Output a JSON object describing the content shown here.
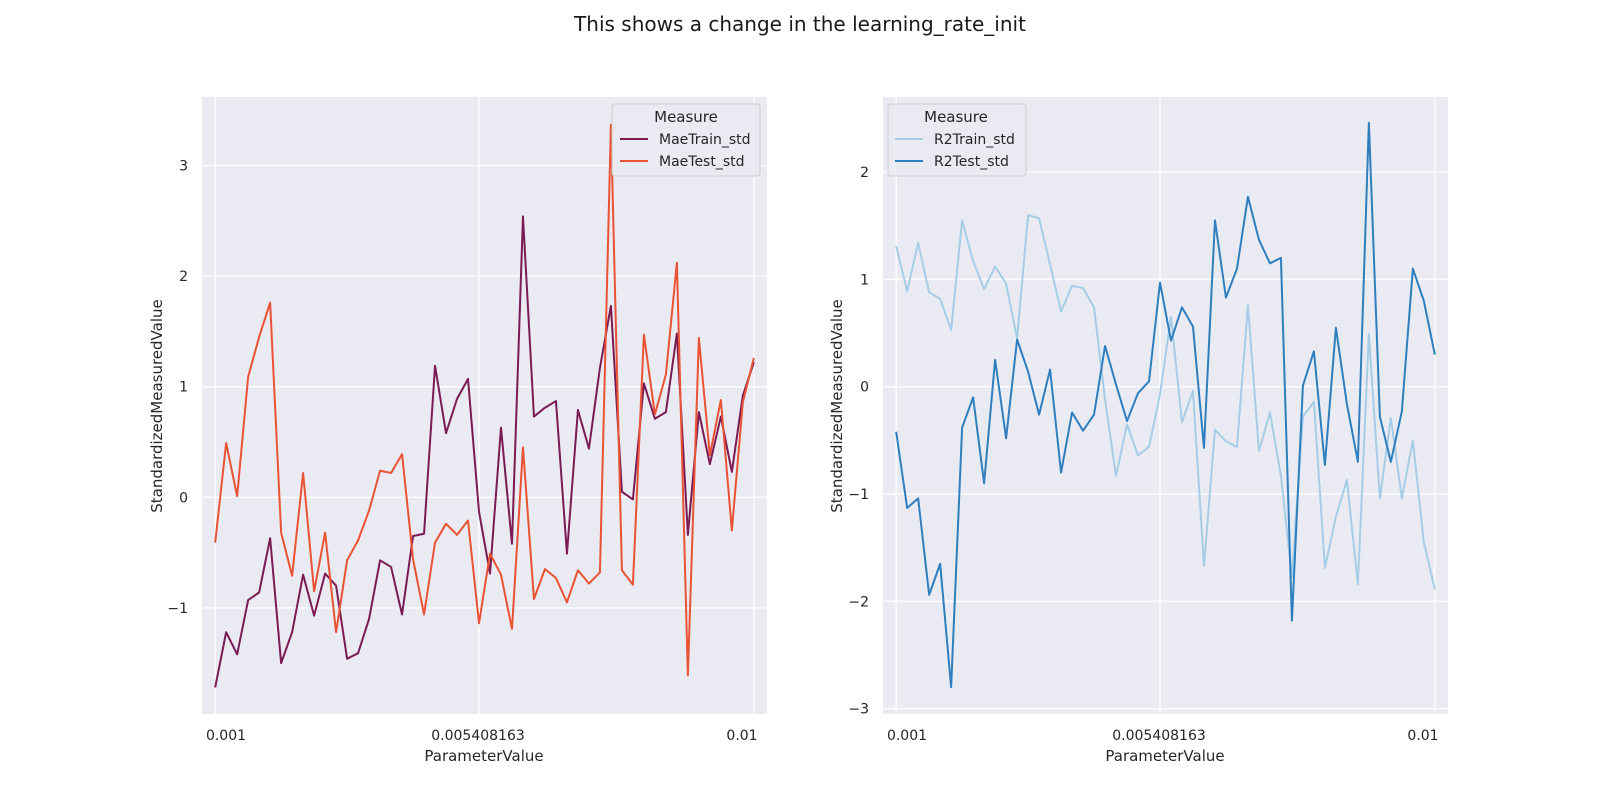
{
  "title": "This shows a change in the learning_rate_init",
  "colors": {
    "panel_bg": "#eaeaf2",
    "grid": "#ffffff",
    "MaeTrain_std": "#7a1b53",
    "MaeTest_std": "#ea5234",
    "R2Train_std": "#a6cde6",
    "R2Test_std": "#2f7fbe"
  },
  "chart_data": [
    {
      "type": "line",
      "xlabel": "ParameterValue",
      "ylabel": "StandardizedMeasuredValue",
      "x_ticks": [
        "0.001",
        "0.005408163",
        "0.01"
      ],
      "y_ticks": [
        "−1",
        "0",
        "1",
        "2",
        "3"
      ],
      "y_tick_values": [
        -1,
        0,
        1,
        2,
        3
      ],
      "xlim": [
        0.00078,
        0.01022
      ],
      "ylim": [
        -1.96,
        3.62
      ],
      "grid": true,
      "legend": {
        "title": "Measure",
        "placement": "top-right"
      },
      "x_range": [
        0.001,
        0.01
      ],
      "series": [
        {
          "name": "MaeTrain_std",
          "values": [
            -1.72,
            -1.22,
            -1.42,
            -0.93,
            -0.86,
            -0.37,
            -1.5,
            -1.22,
            -0.7,
            -1.07,
            -0.69,
            -0.8,
            -1.46,
            -1.41,
            -1.1,
            -0.57,
            -0.63,
            -1.06,
            -0.35,
            -0.33,
            1.19,
            0.58,
            0.89,
            1.07,
            -0.13,
            -0.69,
            0.63,
            -0.42,
            2.54,
            0.73,
            0.81,
            0.87,
            -0.51,
            0.79,
            0.44,
            1.17,
            1.73,
            0.05,
            -0.02,
            1.03,
            0.71,
            0.77,
            1.48,
            -0.34,
            0.77,
            0.3,
            0.73,
            0.23,
            0.92,
            1.22
          ]
        },
        {
          "name": "MaeTest_std",
          "values": [
            -0.41,
            0.49,
            0.01,
            1.09,
            1.45,
            1.76,
            -0.32,
            -0.71,
            0.22,
            -0.85,
            -0.32,
            -1.22,
            -0.57,
            -0.39,
            -0.12,
            0.24,
            0.22,
            0.39,
            -0.56,
            -1.06,
            -0.41,
            -0.24,
            -0.34,
            -0.21,
            -1.14,
            -0.51,
            -0.7,
            -1.19,
            0.45,
            -0.92,
            -0.65,
            -0.73,
            -0.95,
            -0.66,
            -0.78,
            -0.68,
            3.37,
            -0.66,
            -0.79,
            1.47,
            0.75,
            1.11,
            2.12,
            -1.61,
            1.44,
            0.38,
            0.88,
            -0.3,
            0.86,
            1.26
          ]
        }
      ]
    },
    {
      "type": "line",
      "xlabel": "ParameterValue",
      "ylabel": "StandardizedMeasuredValue",
      "x_ticks": [
        "0.001",
        "0.005408163",
        "0.01"
      ],
      "y_ticks": [
        "−3",
        "−2",
        "−1",
        "0",
        "1",
        "2"
      ],
      "y_tick_values": [
        -3,
        -2,
        -1,
        0,
        1,
        2
      ],
      "xlim": [
        0.00078,
        0.01022
      ],
      "ylim": [
        -3.05,
        2.7
      ],
      "grid": true,
      "legend": {
        "title": "Measure",
        "placement": "top-left"
      },
      "x_range": [
        0.001,
        0.01
      ],
      "series": [
        {
          "name": "R2Train_std",
          "values": [
            1.31,
            0.89,
            1.34,
            0.88,
            0.82,
            0.53,
            1.55,
            1.17,
            0.91,
            1.12,
            0.96,
            0.45,
            1.6,
            1.57,
            1.14,
            0.7,
            0.94,
            0.92,
            0.74,
            -0.12,
            -0.83,
            -0.35,
            -0.64,
            -0.56,
            -0.07,
            0.65,
            -0.33,
            -0.04,
            -1.67,
            -0.4,
            -0.51,
            -0.56,
            0.76,
            -0.6,
            -0.24,
            -0.83,
            -1.77,
            -0.28,
            -0.14,
            -1.69,
            -1.21,
            -0.87,
            -1.84,
            0.49,
            -1.04,
            -0.29,
            -1.04,
            -0.5,
            -1.45,
            -1.89
          ]
        },
        {
          "name": "R2Test_std",
          "values": [
            -0.42,
            -1.13,
            -1.04,
            -1.94,
            -1.65,
            -2.8,
            -0.38,
            -0.1,
            -0.9,
            0.25,
            -0.48,
            0.44,
            0.14,
            -0.26,
            0.16,
            -0.8,
            -0.24,
            -0.41,
            -0.26,
            0.38,
            0.02,
            -0.32,
            -0.06,
            0.05,
            0.97,
            0.43,
            0.74,
            0.56,
            -0.57,
            1.55,
            0.83,
            1.1,
            1.77,
            1.37,
            1.15,
            1.2,
            -2.18,
            0.01,
            0.33,
            -0.73,
            0.55,
            -0.16,
            -0.7,
            2.46,
            -0.28,
            -0.7,
            -0.23,
            1.1,
            0.8,
            0.3
          ]
        }
      ]
    }
  ]
}
